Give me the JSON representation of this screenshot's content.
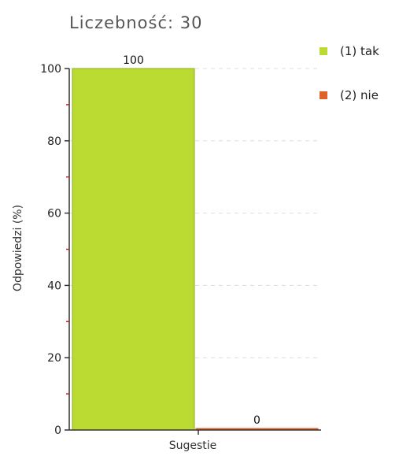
{
  "chart_data": {
    "type": "bar",
    "title": "Liczebność: 30",
    "categories": [
      "Sugestie"
    ],
    "series": [
      {
        "name": "(1) tak",
        "values": [
          100
        ],
        "color": "#bbdb33"
      },
      {
        "name": "(2) nie",
        "values": [
          0
        ],
        "color": "#e0622a"
      }
    ],
    "xlabel": "Sugestie",
    "ylabel": "Odpowiedzi (%)",
    "ylim": [
      0,
      100
    ],
    "yticks": [
      0,
      20,
      40,
      60,
      80,
      100
    ],
    "grid": true,
    "legend": "top-right",
    "data_labels": [
      "100",
      "0"
    ]
  }
}
